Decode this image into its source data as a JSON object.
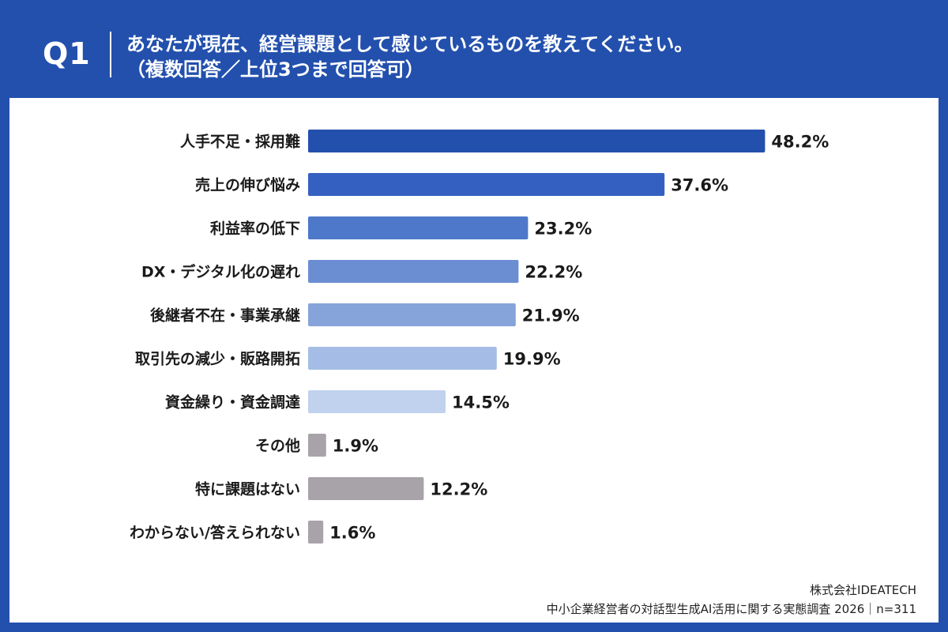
{
  "header": {
    "q_label": "Q1",
    "title_line1": "あなたが現在、経営課題として感じているものを教えてください。",
    "title_line2": "（複数回答／上位3つまで回答可）"
  },
  "footer": {
    "company": "株式会社IDEATECH",
    "survey": "中小企業経営者の対話型生成AI活用に関する実態調査 2026｜n=311"
  },
  "chart_data": {
    "type": "bar",
    "orientation": "horizontal",
    "categories": [
      "人手不足・採用難",
      "売上の伸び悩み",
      "利益率の低下",
      "DX・デジタル化の遅れ",
      "後継者不在・事業承継",
      "取引先の減少・販路開拓",
      "資金繰り・資金調達",
      "その他",
      "特に課題はない",
      "わからない/答えられない"
    ],
    "values": [
      48.2,
      37.6,
      23.2,
      22.2,
      21.9,
      19.9,
      14.5,
      1.9,
      12.2,
      1.6
    ],
    "value_labels": [
      "48.2%",
      "37.6%",
      "23.2%",
      "22.2%",
      "21.9%",
      "19.9%",
      "14.5%",
      "1.9%",
      "12.2%",
      "1.6%"
    ],
    "colors": [
      "#2350ad",
      "#3461c1",
      "#4e78c9",
      "#6b8ed3",
      "#86a3da",
      "#a5bde6",
      "#c1d2ee",
      "#a7a3a8",
      "#a7a3a8",
      "#a7a3a8"
    ],
    "xlim": [
      0,
      50
    ],
    "grid": false,
    "legend": "none"
  }
}
